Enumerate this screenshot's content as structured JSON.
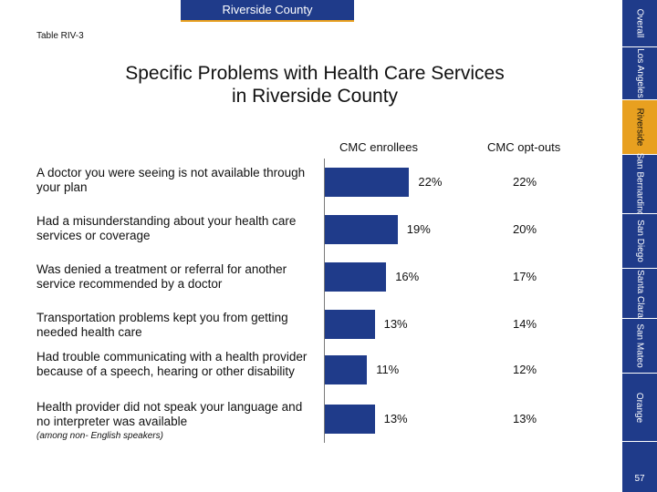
{
  "banner": "Riverside County",
  "table_id": "Table RIV-3",
  "title_line1": "Specific Problems with Health Care Services",
  "title_line2": "in Riverside County",
  "tabs": [
    "Overall",
    "Los Angeles",
    "Riverside",
    "San Bernardino",
    "San Diego",
    "Santa Clara",
    "San Mateo",
    "Orange"
  ],
  "active_tab": "Riverside",
  "page_number": "57",
  "colors": {
    "bar": "#1f3b8a",
    "accent": "#e8a020"
  },
  "chart_data": {
    "type": "bar",
    "orientation": "horizontal",
    "title": "Specific Problems with Health Care Services in Riverside County",
    "columns": [
      "CMC enrollees",
      "CMC opt-outs"
    ],
    "categories": [
      "A doctor you were seeing is not available through your plan",
      "Had a misunderstanding about your health care services or coverage",
      "Was denied a treatment or referral for another service recommended by a doctor",
      "Transportation problems kept you from getting needed health care",
      "Had trouble communicating with a health provider because of a speech, hearing or other disability",
      "Health provider did not speak your language and no interpreter was available"
    ],
    "category_note": "(among non- English speakers)",
    "series": [
      {
        "name": "CMC enrollees",
        "values": [
          22,
          19,
          16,
          13,
          11,
          13
        ],
        "labels": [
          "22%",
          "19%",
          "16%",
          "13%",
          "11%",
          "13%"
        ]
      },
      {
        "name": "CMC opt-outs",
        "values": [
          22,
          20,
          17,
          14,
          12,
          13
        ],
        "labels": [
          "22%",
          "20%",
          "17%",
          "14%",
          "12%",
          "13%"
        ]
      }
    ],
    "xlim": [
      0,
      25
    ]
  }
}
